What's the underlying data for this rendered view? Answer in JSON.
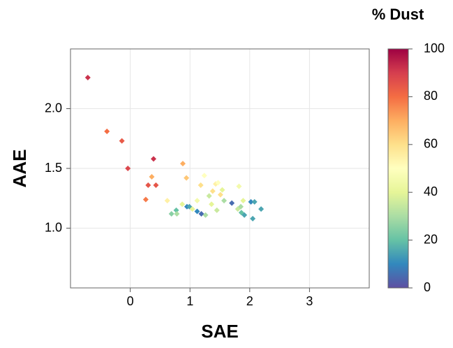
{
  "chart_data": {
    "type": "scatter",
    "xlabel": "SAE",
    "ylabel": "AAE",
    "xlim": [
      -1,
      4
    ],
    "ylim": [
      0.5,
      2.5
    ],
    "xticks": [
      0,
      1,
      2,
      3
    ],
    "yticks": [
      {
        "value": 1.0,
        "label": "1.0"
      },
      {
        "value": 1.5,
        "label": "1.5"
      },
      {
        "value": 2.0,
        "label": "2.0"
      }
    ],
    "grid": true,
    "x": [
      -0.71,
      -0.39,
      -0.14,
      -0.04,
      0.39,
      0.3,
      0.43,
      0.36,
      0.26,
      0.88,
      0.94,
      0.62,
      0.69,
      0.77,
      0.78,
      0.87,
      0.95,
      0.99,
      1.04,
      1.12,
      1.12,
      1.19,
      1.26,
      1.18,
      1.24,
      1.32,
      1.38,
      1.43,
      1.47,
      1.45,
      1.51,
      1.54,
      1.36,
      1.57,
      1.7,
      1.82,
      1.8,
      1.85,
      1.89,
      1.86,
      1.91,
      2.02,
      2.08,
      2.05,
      2.19
    ],
    "y": [
      2.26,
      1.81,
      1.73,
      1.5,
      1.58,
      1.36,
      1.36,
      1.43,
      1.24,
      1.54,
      1.42,
      1.23,
      1.12,
      1.15,
      1.12,
      1.2,
      1.18,
      1.18,
      1.16,
      1.23,
      1.14,
      1.12,
      1.11,
      1.36,
      1.44,
      1.27,
      1.31,
      1.37,
      1.38,
      1.15,
      1.28,
      1.32,
      1.2,
      1.23,
      1.21,
      1.35,
      1.16,
      1.18,
      1.23,
      1.13,
      1.11,
      1.22,
      1.22,
      1.08,
      1.16
    ],
    "color_values": [
      92,
      80,
      84,
      88,
      92,
      85,
      85,
      70,
      78,
      70,
      65,
      55,
      25,
      20,
      30,
      40,
      10,
      15,
      40,
      45,
      10,
      5,
      30,
      60,
      50,
      35,
      60,
      55,
      50,
      35,
      60,
      40,
      40,
      30,
      5,
      45,
      35,
      30,
      40,
      20,
      15,
      10,
      15,
      15,
      15
    ],
    "colorbar": {
      "title": "% Dust",
      "lim": [
        0,
        100
      ],
      "ticks": [
        0,
        20,
        40,
        60,
        80,
        100
      ],
      "colormap": [
        "#5e4fa2",
        "#3288bd",
        "#66c2a5",
        "#abdda4",
        "#e6f598",
        "#ffffbf",
        "#fee08b",
        "#fdae61",
        "#f46d43",
        "#d53e4f",
        "#9e0142"
      ]
    }
  }
}
